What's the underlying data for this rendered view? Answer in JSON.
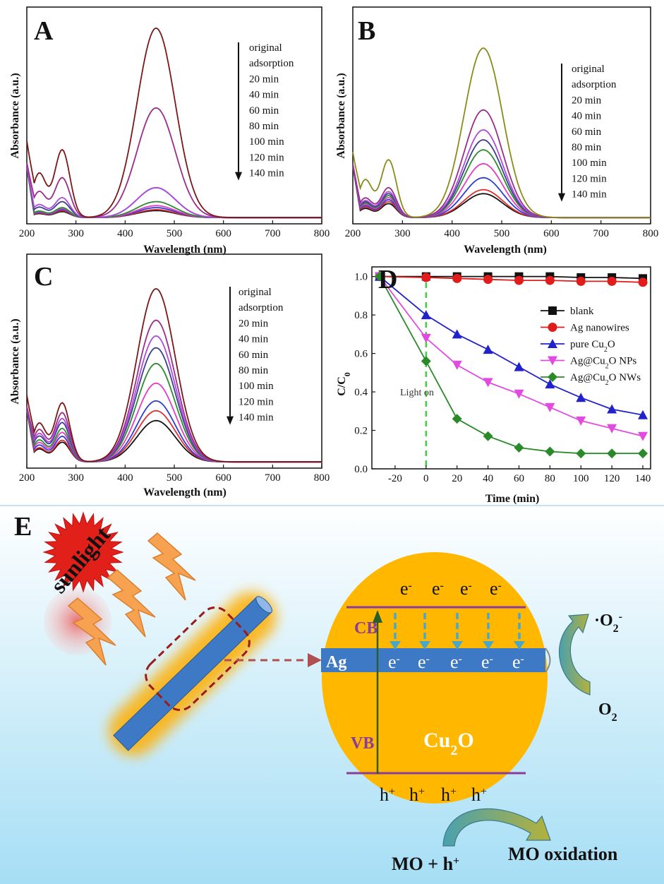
{
  "colors": {
    "original": "#7a1818",
    "adsorption": "#9b2c8c",
    "20": "#b04adf",
    "40": "#3a3f8c",
    "60": "#2d8a2d",
    "80": "#e33dc3",
    "100": "#2d3dd6",
    "120": "#e03030",
    "140": "#141414",
    "b_original": "#8a8a1a"
  },
  "panels": {
    "A": {
      "label": "A",
      "xlabel": "Wavelength (nm)",
      "ylabel": "Absorbance (a.u.)",
      "legend": [
        "original",
        "adsorption",
        "20 min",
        "40 min",
        "60 min",
        "80 min",
        "100 min",
        "120 min",
        "140 min"
      ],
      "xticks": [
        "200",
        "300",
        "400",
        "500",
        "600",
        "700",
        "800"
      ]
    },
    "B": {
      "label": "B",
      "xlabel": "Wavelength (nm)",
      "ylabel": "Absorbance (a.u.)",
      "legend": [
        "original",
        "adsorption",
        "20 min",
        "40 min",
        "60 min",
        "80 min",
        "100 min",
        "120 min",
        "140 min"
      ],
      "xticks": [
        "200",
        "300",
        "400",
        "500",
        "600",
        "700",
        "800"
      ]
    },
    "C": {
      "label": "C",
      "xlabel": "Wavelength (nm)",
      "ylabel": "Absorbance (a.u.)",
      "legend": [
        "original",
        "adsorption",
        "20 min",
        "40 min",
        "60 min",
        "80 min",
        "100 min",
        "120 min",
        "140 min"
      ],
      "xticks": [
        "200",
        "300",
        "400",
        "500",
        "600",
        "700",
        "800"
      ]
    },
    "D": {
      "label": "D",
      "xlabel": "Time (min)",
      "ylabel": "C/C",
      "ylabel_sub": "0",
      "annotation": "Light on",
      "xticks": [
        "-20",
        "0",
        "20",
        "40",
        "60",
        "80",
        "100",
        "120",
        "140"
      ],
      "yticks": [
        "0.0",
        "0.2",
        "0.4",
        "0.6",
        "0.8",
        "1.0"
      ]
    },
    "E": {
      "label": "E",
      "sunlight": "sunlight",
      "cb": "CB",
      "vb": "VB",
      "ag": "Ag",
      "cu2o": "Cu",
      "cu2o_sub": "2",
      "cu2o_tail": "O",
      "electron": "e",
      "electron_sup": "-",
      "hole": "h",
      "hole_sup": "+",
      "o2_radical": "·O",
      "o2_radical_sub": "2",
      "o2_radical_sup": "-",
      "o2": "O",
      "o2_sub": "2",
      "mo_h": "MO + h",
      "mo_h_sup": "+",
      "mo_oxidation": "MO oxidation"
    }
  },
  "chart_data": [
    {
      "panel": "A",
      "type": "line",
      "xlim": [
        200,
        800
      ],
      "series_peak_470": [
        0.95,
        0.55,
        0.15,
        0.15,
        0.08,
        0.06,
        0.05,
        0.04,
        0.035
      ],
      "series_peak_270": [
        0.34,
        0.2,
        0.1,
        0.08,
        0.05,
        0.045,
        0.04,
        0.035,
        0.03
      ]
    },
    {
      "panel": "B",
      "type": "line",
      "xlim": [
        200,
        800
      ],
      "series_peak_470": [
        0.85,
        0.54,
        0.44,
        0.39,
        0.34,
        0.27,
        0.2,
        0.14,
        0.12
      ],
      "series_peak_270": [
        0.29,
        0.15,
        0.13,
        0.12,
        0.11,
        0.1,
        0.09,
        0.08,
        0.07
      ]
    },
    {
      "panel": "C",
      "type": "line",
      "xlim": [
        200,
        800
      ],
      "series_peak_470": [
        0.88,
        0.72,
        0.64,
        0.58,
        0.5,
        0.4,
        0.31,
        0.26,
        0.21
      ],
      "series_peak_270": [
        0.3,
        0.25,
        0.22,
        0.2,
        0.17,
        0.15,
        0.13,
        0.11,
        0.1
      ]
    },
    {
      "panel": "D",
      "type": "line",
      "x": [
        -30,
        0,
        20,
        40,
        60,
        80,
        100,
        120,
        140
      ],
      "xlim": [
        -35,
        145
      ],
      "ylim": [
        0,
        1.05
      ],
      "series": [
        {
          "name": "blank",
          "color": "#111111",
          "marker": "square",
          "values": [
            1.0,
            1.0,
            1.0,
            1.0,
            1.0,
            1.0,
            0.995,
            0.995,
            0.99
          ]
        },
        {
          "name": "Ag nanowires",
          "color": "#e21b1b",
          "marker": "circle",
          "values": [
            1.0,
            0.995,
            0.99,
            0.985,
            0.98,
            0.98,
            0.975,
            0.975,
            0.97
          ]
        },
        {
          "name": "pure Cu2O",
          "color": "#2222cc",
          "marker": "triangle-up",
          "values": [
            1.0,
            0.8,
            0.7,
            0.62,
            0.53,
            0.44,
            0.37,
            0.31,
            0.28
          ]
        },
        {
          "name": "Ag@Cu2O NPs",
          "color": "#e24ae2",
          "marker": "triangle-down",
          "values": [
            1.0,
            0.68,
            0.54,
            0.45,
            0.39,
            0.32,
            0.25,
            0.21,
            0.17
          ]
        },
        {
          "name": "Ag@Cu2O NWs",
          "color": "#2a8a2a",
          "marker": "diamond",
          "values": [
            1.0,
            0.56,
            0.26,
            0.17,
            0.11,
            0.09,
            0.08,
            0.08,
            0.08
          ]
        }
      ],
      "legend": [
        "blank",
        "Ag nanowires",
        "pure Cu",
        "Ag@Cu",
        "Ag@Cu"
      ]
    }
  ]
}
